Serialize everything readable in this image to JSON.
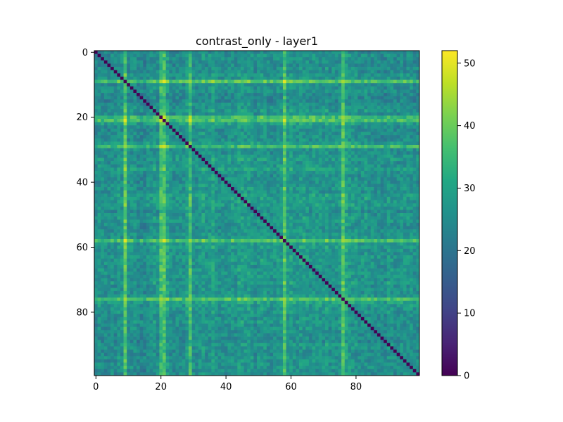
{
  "chart_data": {
    "type": "heatmap",
    "title": "contrast_only - layer1",
    "xlabel": "",
    "ylabel": "",
    "n_rows": 100,
    "n_cols": 100,
    "x_ticks": [
      0,
      20,
      40,
      60,
      80
    ],
    "y_ticks": [
      0,
      20,
      40,
      60,
      80
    ],
    "x_tick_labels": [
      "0",
      "20",
      "40",
      "60",
      "80"
    ],
    "y_tick_labels": [
      "0",
      "20",
      "40",
      "60",
      "80"
    ],
    "diagonal_value": 0,
    "value_range": [
      0,
      52
    ],
    "colormap": "viridis",
    "colorbar": {
      "ticks": [
        0,
        10,
        20,
        30,
        40,
        50
      ],
      "tick_labels": [
        "0",
        "10",
        "20",
        "30",
        "40",
        "50"
      ],
      "range": [
        0,
        52
      ]
    },
    "grid": false,
    "legend": "none",
    "row_base_offsets": [
      22,
      26,
      25,
      24,
      23,
      25,
      24,
      28,
      26,
      34,
      24,
      25,
      26,
      22,
      22,
      21,
      24,
      26,
      28,
      26,
      30,
      31,
      32,
      26,
      24,
      26,
      25,
      25,
      31,
      29,
      26,
      25,
      28,
      30,
      26,
      28,
      32,
      27,
      25,
      26,
      25,
      27,
      28,
      26,
      30,
      30,
      29,
      30,
      28,
      24,
      27,
      29,
      28,
      26,
      25,
      26,
      28,
      27,
      32,
      29,
      30,
      28,
      27,
      29,
      29,
      28,
      26,
      29,
      28,
      28,
      26,
      30,
      25,
      27,
      26,
      29,
      32,
      33,
      29,
      28,
      27,
      25,
      26,
      29,
      25,
      26,
      24,
      25,
      24,
      23,
      28,
      26,
      25,
      24,
      27,
      25,
      26,
      27,
      24,
      25
    ],
    "highlight_indices": [
      9,
      20,
      21,
      29,
      58,
      76
    ]
  }
}
